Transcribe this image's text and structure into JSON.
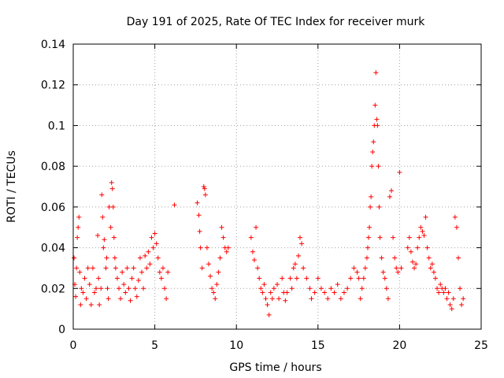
{
  "chart_data": {
    "type": "scatter",
    "title": "Day 191 of 2025, Rate Of TEC Index for receiver murk",
    "xlabel": "GPS time / hours",
    "ylabel": "ROTI / TECUs",
    "xlim": [
      0,
      25
    ],
    "ylim": [
      0,
      0.14
    ],
    "xticks": [
      0,
      5,
      10,
      15,
      20,
      25
    ],
    "xtick_labels": [
      "0",
      "5",
      "10",
      "15",
      "20",
      "25"
    ],
    "yticks": [
      0,
      0.02,
      0.04,
      0.06,
      0.08,
      0.1,
      0.12,
      0.14
    ],
    "ytick_labels": [
      "0",
      "0.02",
      "0.04",
      "0.06",
      "0.08",
      "0.1",
      "0.12",
      "0.14"
    ],
    "grid": true,
    "marker": "plus",
    "color": "#ff0000",
    "points": [
      [
        0.05,
        0.035
      ],
      [
        0.1,
        0.022
      ],
      [
        0.15,
        0.016
      ],
      [
        0.2,
        0.03
      ],
      [
        0.25,
        0.045
      ],
      [
        0.3,
        0.05
      ],
      [
        0.35,
        0.055
      ],
      [
        0.4,
        0.028
      ],
      [
        0.45,
        0.012
      ],
      [
        0.5,
        0.02
      ],
      [
        0.6,
        0.018
      ],
      [
        0.7,
        0.025
      ],
      [
        0.8,
        0.015
      ],
      [
        0.9,
        0.03
      ],
      [
        1.0,
        0.022
      ],
      [
        1.1,
        0.012
      ],
      [
        1.2,
        0.03
      ],
      [
        1.3,
        0.018
      ],
      [
        1.4,
        0.02
      ],
      [
        1.5,
        0.046
      ],
      [
        1.55,
        0.025
      ],
      [
        1.6,
        0.012
      ],
      [
        1.7,
        0.02
      ],
      [
        1.75,
        0.066
      ],
      [
        1.8,
        0.055
      ],
      [
        1.85,
        0.04
      ],
      [
        1.9,
        0.044
      ],
      [
        2.0,
        0.03
      ],
      [
        2.05,
        0.035
      ],
      [
        2.1,
        0.02
      ],
      [
        2.15,
        0.015
      ],
      [
        2.2,
        0.06
      ],
      [
        2.3,
        0.05
      ],
      [
        2.35,
        0.072
      ],
      [
        2.4,
        0.069
      ],
      [
        2.45,
        0.06
      ],
      [
        2.5,
        0.045
      ],
      [
        2.55,
        0.035
      ],
      [
        2.6,
        0.03
      ],
      [
        2.7,
        0.025
      ],
      [
        2.8,
        0.02
      ],
      [
        2.9,
        0.015
      ],
      [
        3.0,
        0.028
      ],
      [
        3.1,
        0.022
      ],
      [
        3.2,
        0.018
      ],
      [
        3.3,
        0.03
      ],
      [
        3.4,
        0.02
      ],
      [
        3.5,
        0.014
      ],
      [
        3.6,
        0.025
      ],
      [
        3.7,
        0.03
      ],
      [
        3.8,
        0.02
      ],
      [
        3.9,
        0.016
      ],
      [
        4.0,
        0.024
      ],
      [
        4.1,
        0.035
      ],
      [
        4.2,
        0.028
      ],
      [
        4.3,
        0.02
      ],
      [
        4.4,
        0.036
      ],
      [
        4.5,
        0.03
      ],
      [
        4.6,
        0.038
      ],
      [
        4.7,
        0.032
      ],
      [
        4.8,
        0.045
      ],
      [
        4.9,
        0.04
      ],
      [
        5.0,
        0.047
      ],
      [
        5.1,
        0.042
      ],
      [
        5.2,
        0.035
      ],
      [
        5.3,
        0.028
      ],
      [
        5.4,
        0.025
      ],
      [
        5.5,
        0.03
      ],
      [
        5.6,
        0.02
      ],
      [
        5.7,
        0.015
      ],
      [
        5.8,
        0.028
      ],
      [
        6.2,
        0.061
      ],
      [
        7.6,
        0.062
      ],
      [
        7.7,
        0.056
      ],
      [
        7.75,
        0.048
      ],
      [
        7.8,
        0.04
      ],
      [
        7.9,
        0.03
      ],
      [
        8.0,
        0.07
      ],
      [
        8.05,
        0.069
      ],
      [
        8.1,
        0.066
      ],
      [
        8.2,
        0.04
      ],
      [
        8.3,
        0.032
      ],
      [
        8.4,
        0.026
      ],
      [
        8.5,
        0.02
      ],
      [
        8.6,
        0.018
      ],
      [
        8.7,
        0.015
      ],
      [
        8.8,
        0.022
      ],
      [
        8.9,
        0.028
      ],
      [
        9.0,
        0.035
      ],
      [
        9.1,
        0.05
      ],
      [
        9.2,
        0.045
      ],
      [
        9.3,
        0.04
      ],
      [
        9.4,
        0.038
      ],
      [
        9.5,
        0.04
      ],
      [
        10.9,
        0.045
      ],
      [
        11.0,
        0.038
      ],
      [
        11.1,
        0.034
      ],
      [
        11.2,
        0.05
      ],
      [
        11.3,
        0.03
      ],
      [
        11.4,
        0.025
      ],
      [
        11.5,
        0.02
      ],
      [
        11.6,
        0.018
      ],
      [
        11.7,
        0.022
      ],
      [
        11.8,
        0.015
      ],
      [
        11.9,
        0.012
      ],
      [
        12.0,
        0.007
      ],
      [
        12.1,
        0.018
      ],
      [
        12.2,
        0.015
      ],
      [
        12.3,
        0.02
      ],
      [
        12.5,
        0.022
      ],
      [
        12.6,
        0.015
      ],
      [
        12.8,
        0.025
      ],
      [
        12.9,
        0.018
      ],
      [
        13.0,
        0.014
      ],
      [
        13.1,
        0.018
      ],
      [
        13.3,
        0.025
      ],
      [
        13.4,
        0.02
      ],
      [
        13.5,
        0.03
      ],
      [
        13.6,
        0.032
      ],
      [
        13.7,
        0.025
      ],
      [
        13.8,
        0.036
      ],
      [
        13.9,
        0.045
      ],
      [
        14.0,
        0.042
      ],
      [
        14.1,
        0.03
      ],
      [
        14.3,
        0.025
      ],
      [
        14.5,
        0.02
      ],
      [
        14.6,
        0.015
      ],
      [
        14.8,
        0.018
      ],
      [
        15.0,
        0.025
      ],
      [
        15.2,
        0.02
      ],
      [
        15.4,
        0.018
      ],
      [
        15.6,
        0.015
      ],
      [
        15.8,
        0.02
      ],
      [
        16.0,
        0.018
      ],
      [
        16.2,
        0.022
      ],
      [
        16.4,
        0.015
      ],
      [
        16.6,
        0.018
      ],
      [
        16.8,
        0.02
      ],
      [
        17.0,
        0.025
      ],
      [
        17.2,
        0.03
      ],
      [
        17.4,
        0.028
      ],
      [
        17.5,
        0.025
      ],
      [
        17.6,
        0.015
      ],
      [
        17.7,
        0.02
      ],
      [
        17.8,
        0.025
      ],
      [
        17.9,
        0.03
      ],
      [
        18.0,
        0.035
      ],
      [
        18.05,
        0.04
      ],
      [
        18.1,
        0.045
      ],
      [
        18.15,
        0.05
      ],
      [
        18.2,
        0.06
      ],
      [
        18.25,
        0.065
      ],
      [
        18.3,
        0.08
      ],
      [
        18.35,
        0.087
      ],
      [
        18.4,
        0.092
      ],
      [
        18.45,
        0.1
      ],
      [
        18.5,
        0.11
      ],
      [
        18.55,
        0.126
      ],
      [
        18.6,
        0.103
      ],
      [
        18.65,
        0.1
      ],
      [
        18.7,
        0.08
      ],
      [
        18.75,
        0.06
      ],
      [
        18.8,
        0.045
      ],
      [
        18.9,
        0.035
      ],
      [
        19.0,
        0.028
      ],
      [
        19.1,
        0.025
      ],
      [
        19.2,
        0.02
      ],
      [
        19.3,
        0.015
      ],
      [
        19.4,
        0.065
      ],
      [
        19.5,
        0.068
      ],
      [
        19.6,
        0.045
      ],
      [
        19.7,
        0.035
      ],
      [
        19.8,
        0.03
      ],
      [
        19.9,
        0.028
      ],
      [
        20.0,
        0.077
      ],
      [
        20.1,
        0.03
      ],
      [
        20.5,
        0.04
      ],
      [
        20.6,
        0.045
      ],
      [
        20.7,
        0.038
      ],
      [
        20.8,
        0.033
      ],
      [
        20.9,
        0.03
      ],
      [
        21.0,
        0.032
      ],
      [
        21.1,
        0.04
      ],
      [
        21.2,
        0.045
      ],
      [
        21.3,
        0.05
      ],
      [
        21.4,
        0.048
      ],
      [
        21.5,
        0.046
      ],
      [
        21.6,
        0.055
      ],
      [
        21.7,
        0.04
      ],
      [
        21.8,
        0.035
      ],
      [
        21.9,
        0.03
      ],
      [
        22.0,
        0.032
      ],
      [
        22.1,
        0.028
      ],
      [
        22.2,
        0.025
      ],
      [
        22.3,
        0.02
      ],
      [
        22.4,
        0.018
      ],
      [
        22.5,
        0.022
      ],
      [
        22.6,
        0.02
      ],
      [
        22.7,
        0.018
      ],
      [
        22.8,
        0.02
      ],
      [
        22.9,
        0.015
      ],
      [
        23.0,
        0.018
      ],
      [
        23.1,
        0.012
      ],
      [
        23.2,
        0.01
      ],
      [
        23.3,
        0.015
      ],
      [
        23.4,
        0.055
      ],
      [
        23.5,
        0.05
      ],
      [
        23.6,
        0.035
      ],
      [
        23.7,
        0.02
      ],
      [
        23.8,
        0.012
      ],
      [
        23.9,
        0.015
      ]
    ]
  }
}
